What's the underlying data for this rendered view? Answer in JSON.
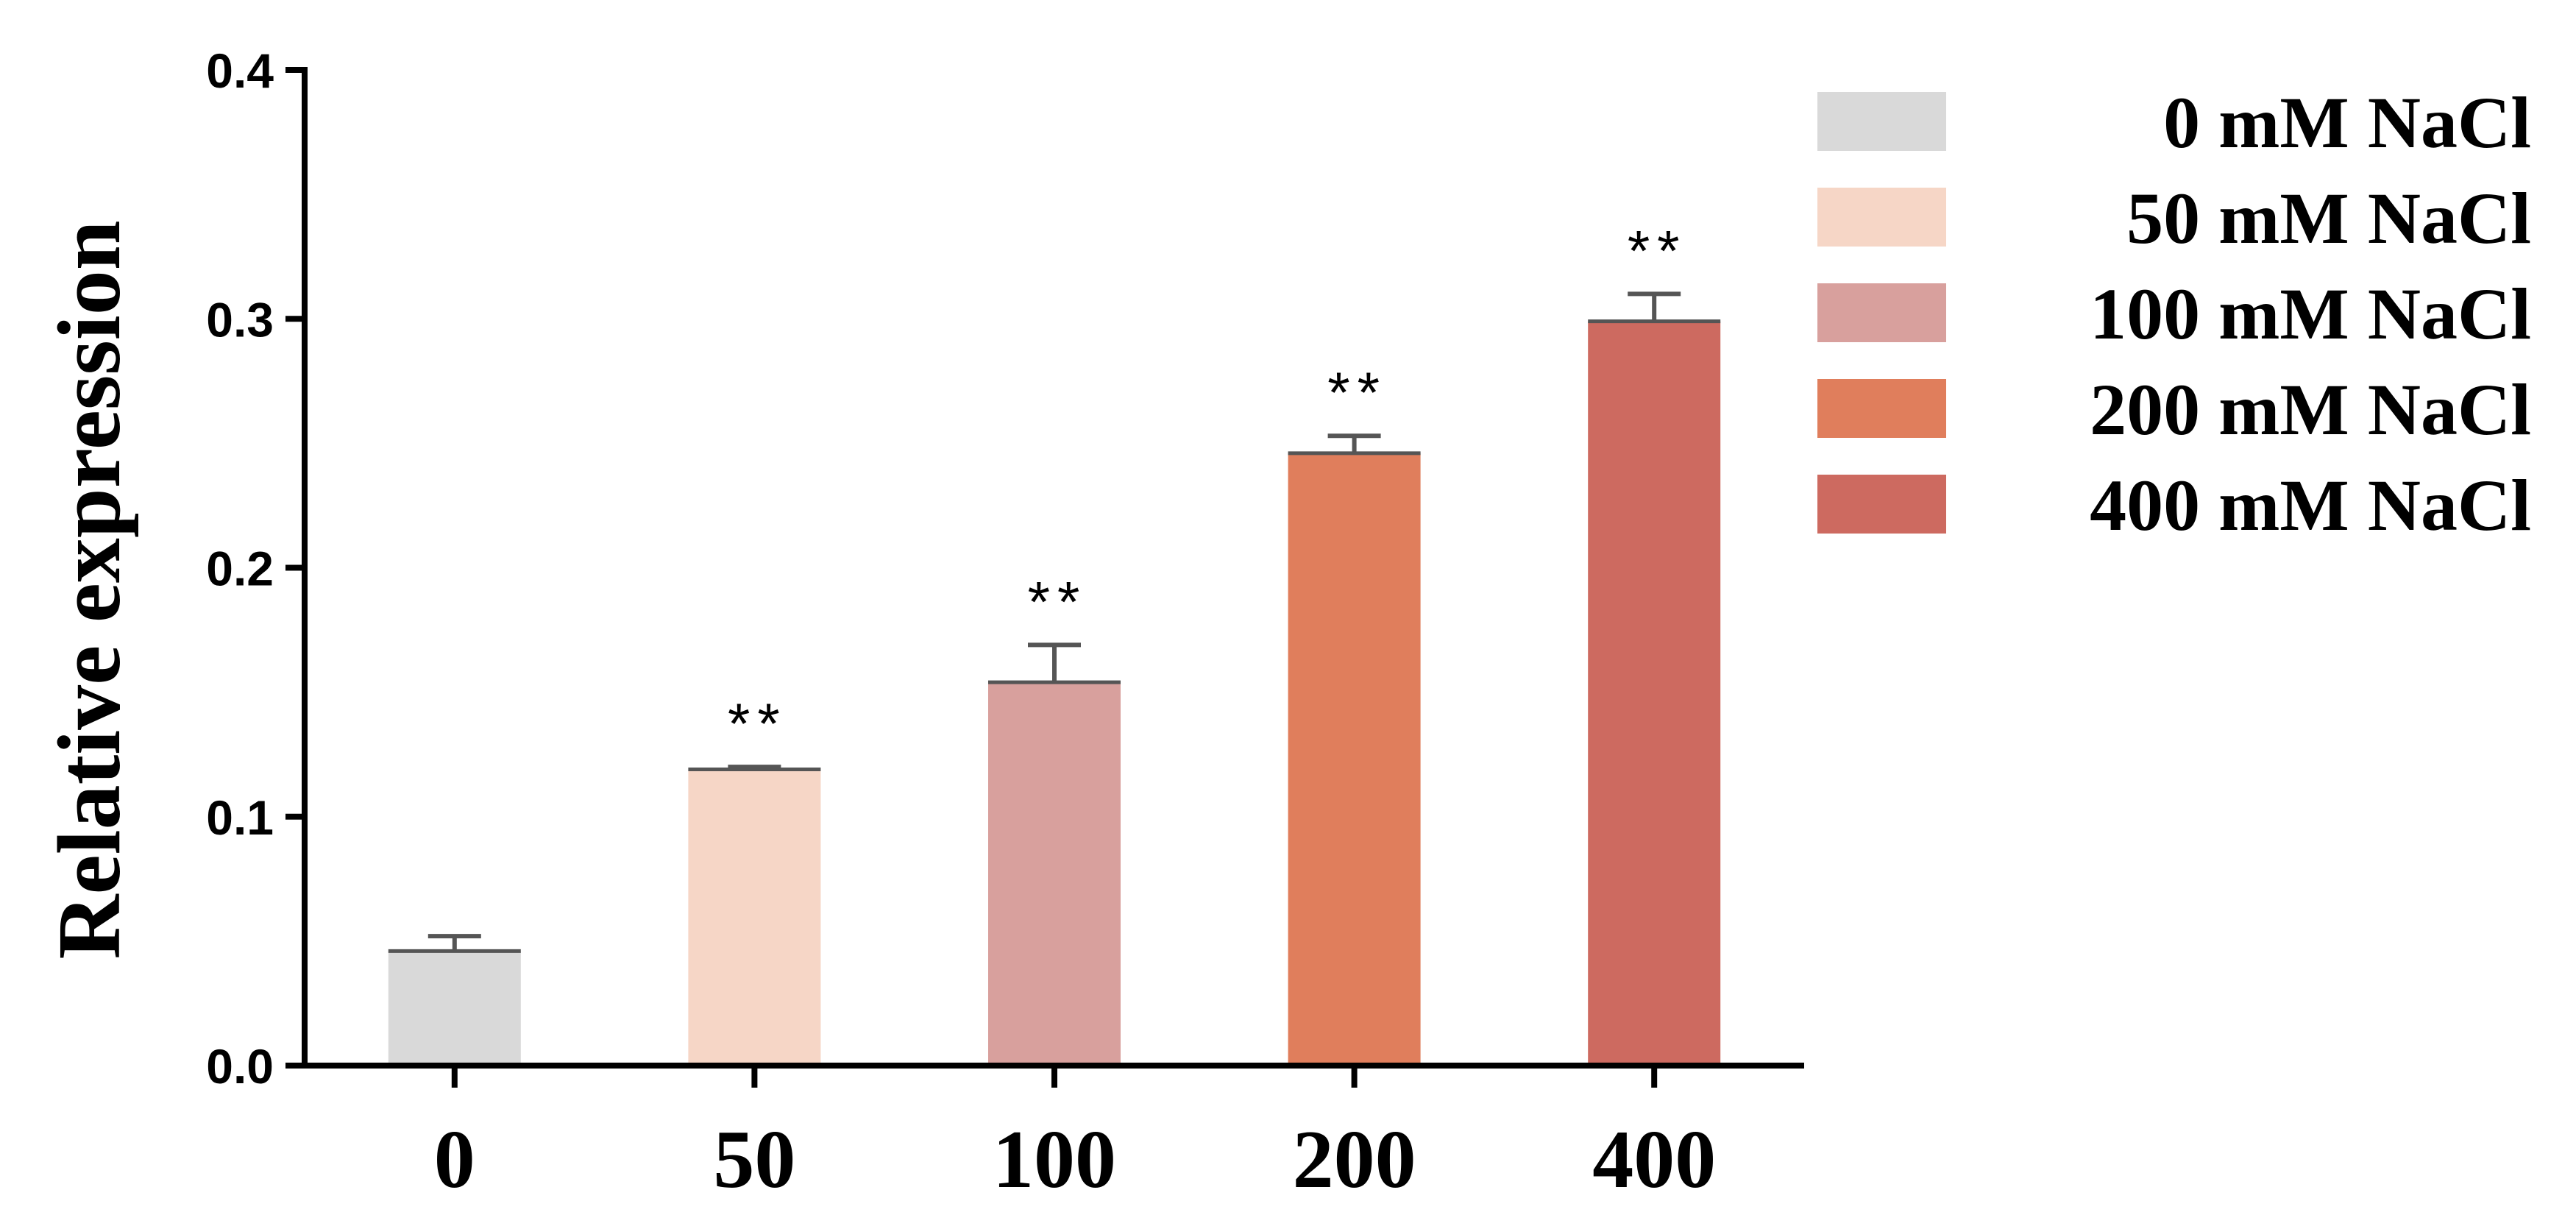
{
  "chart_data": {
    "type": "bar",
    "title": "",
    "xlabel": "",
    "ylabel": "Relative expression",
    "ylim": [
      0,
      0.4
    ],
    "yticks": [
      "0.0",
      "0.1",
      "0.2",
      "0.3",
      "0.4"
    ],
    "categories": [
      "0",
      "50",
      "100",
      "200",
      "400"
    ],
    "values": [
      0.046,
      0.119,
      0.154,
      0.246,
      0.299
    ],
    "errors": [
      0.006,
      0.001,
      0.015,
      0.007,
      0.011
    ],
    "significance": [
      "",
      "**",
      "**",
      "**",
      "**"
    ],
    "colors": [
      "#d9d9d9",
      "#f6d6c6",
      "#d8a09d",
      "#e07e5c",
      "#cd6a60"
    ],
    "legend": {
      "position": "right",
      "entries": [
        "0 mM NaCl",
        "50 mM NaCl",
        "100 mM NaCl",
        "200 mM NaCl",
        "400 mM NaCl"
      ]
    },
    "grid": false
  }
}
